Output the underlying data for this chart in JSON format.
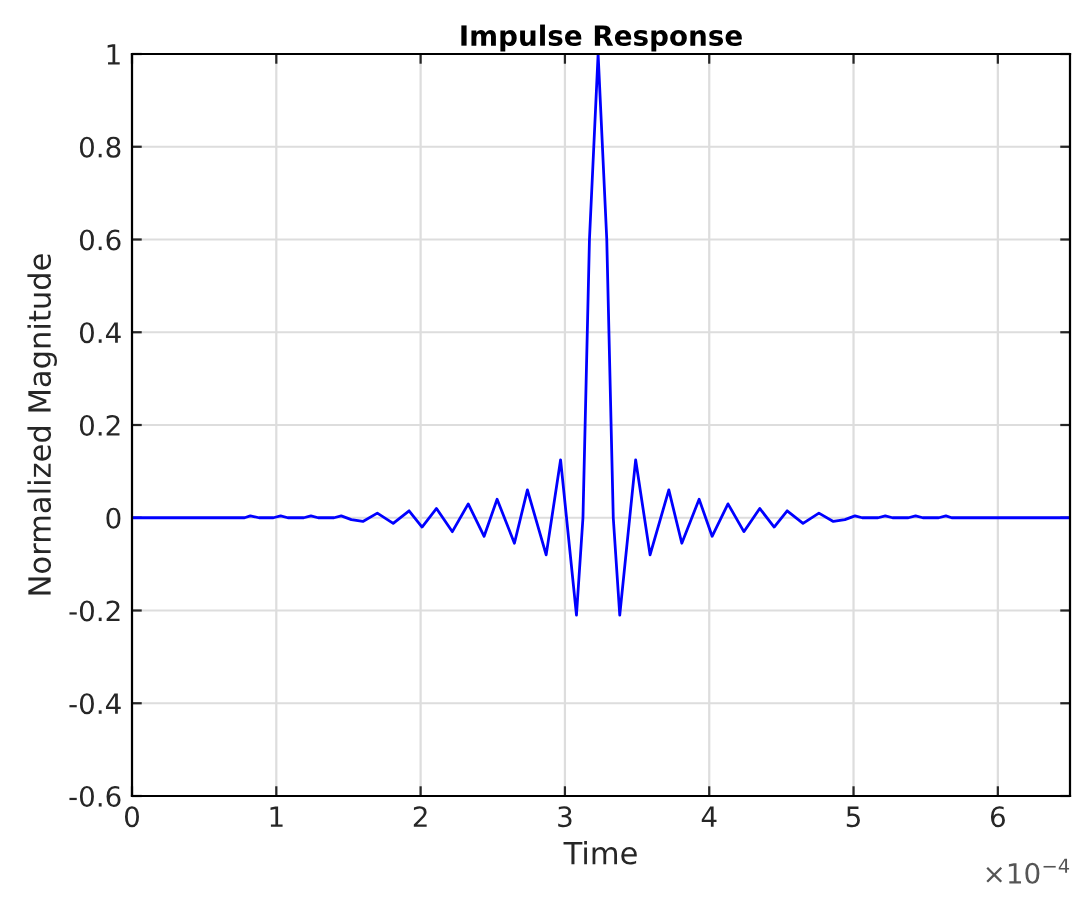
{
  "chart_data": {
    "type": "line",
    "title": "Impulse Response",
    "xlabel": "Time",
    "ylabel": "Normalized Magnitude",
    "annotations": [
      "×10$^{−4}$"
    ],
    "xlim": [
      0,
      6.5
    ],
    "xticks": [
      0,
      1,
      2,
      3,
      4,
      5,
      6
    ],
    "ylim": [
      -0.6,
      1
    ],
    "yticks": [
      {
        "value": -0.6,
        "label": "-0.6"
      },
      {
        "value": -0.4,
        "label": "-0.4"
      },
      {
        "value": -0.2,
        "label": "-0.2"
      },
      0,
      0.2,
      0.4,
      0.6,
      0.8,
      1
    ],
    "grid": true,
    "line_style": "solid",
    "series": [
      {
        "color": "#0000ff",
        "x": [
          0,
          0.78,
          0.82,
          0.88,
          0.98,
          1.03,
          1.08,
          1.19,
          1.24,
          1.29,
          1.4,
          1.45,
          1.52,
          1.6,
          1.7,
          1.81,
          1.92,
          2.01,
          2.11,
          2.22,
          2.33,
          2.44,
          2.53,
          2.65,
          2.74,
          2.87,
          2.97,
          3.08,
          3.125,
          3.17,
          3.23,
          3.29,
          3.335,
          3.38,
          3.49,
          3.59,
          3.72,
          3.81,
          3.93,
          4.02,
          4.13,
          4.24,
          4.35,
          4.45,
          4.54,
          4.65,
          4.76,
          4.86,
          4.94,
          5.01,
          5.06,
          5.17,
          5.22,
          5.27,
          5.38,
          5.43,
          5.48,
          5.59,
          5.64,
          5.68,
          6.5
        ],
        "values": [
          0,
          0,
          0.004,
          0,
          0,
          0.004,
          0,
          0,
          0.004,
          0,
          0,
          0.004,
          -0.004,
          -0.008,
          0.01,
          -0.012,
          0.015,
          -0.02,
          0.02,
          -0.03,
          0.03,
          -0.04,
          0.04,
          -0.055,
          0.06,
          -0.08,
          0.125,
          -0.21,
          0,
          0.6,
          1.0,
          0.6,
          0,
          -0.21,
          0.125,
          -0.08,
          0.06,
          -0.055,
          0.04,
          -0.04,
          0.03,
          -0.03,
          0.02,
          -0.02,
          0.015,
          -0.012,
          0.01,
          -0.008,
          -0.004,
          0.004,
          0,
          0,
          0.004,
          0,
          0,
          0.004,
          0,
          0,
          0.004,
          0,
          0
        ]
      }
    ]
  }
}
